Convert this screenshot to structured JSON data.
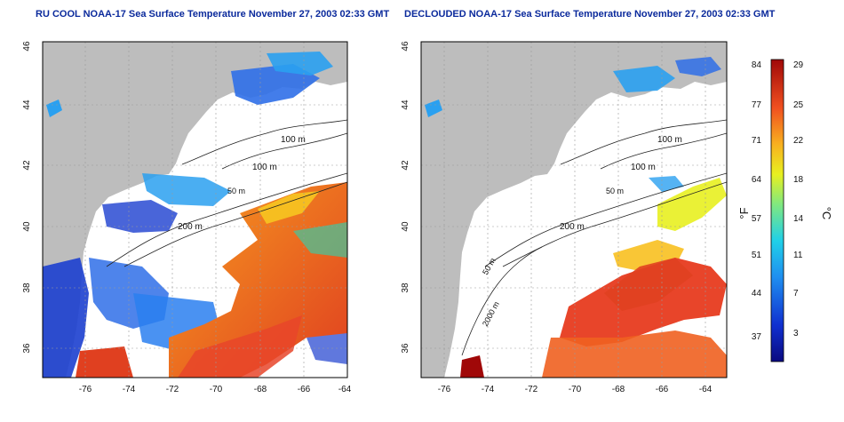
{
  "panels": [
    {
      "title": "RU COOL NOAA-17 Sea Surface Temperature November 27, 2003 02:33 GMT",
      "contour_labels": [
        "100 m",
        "100 m",
        "50 m",
        "200 m"
      ]
    },
    {
      "title": "DECLOUDED NOAA-17 Sea Surface Temperature November 27, 2003 02:33 GMT",
      "contour_labels": [
        "100 m",
        "100 m",
        "50 m",
        "200 m",
        "50 m",
        "2000 m"
      ]
    }
  ],
  "axes": {
    "x_ticks": [
      "-76",
      "-74",
      "-72",
      "-70",
      "-68",
      "-66",
      "-64"
    ],
    "y_ticks": [
      "36",
      "38",
      "40",
      "42",
      "44",
      "46"
    ]
  },
  "colorbar": {
    "fahrenheit_label": "°F",
    "celsius_label": "°C",
    "fahrenheit_ticks": [
      "84",
      "77",
      "71",
      "64",
      "57",
      "51",
      "44",
      "37"
    ],
    "celsius_ticks": [
      "29",
      "25",
      "22",
      "18",
      "14",
      "11",
      "7",
      "3"
    ]
  },
  "colors": {
    "land": "#bdbdbd",
    "cloud_mask": "#ffffff",
    "title_text": "#0b2a9c",
    "warm": "#e8452a",
    "cold": "#1c3fcf"
  }
}
